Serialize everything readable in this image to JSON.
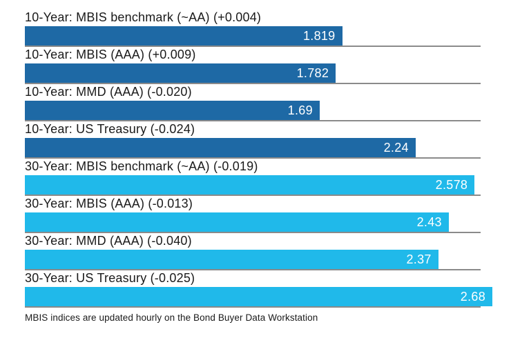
{
  "footer": {
    "note": "MBIS indices are updated hourly on the Bond Buyer Data Workstation"
  },
  "colors": {
    "bar_10_year": "#1e69a5",
    "bar_30_year": "#20b9ea",
    "row_baseline": "#8a8a8a",
    "bar_value_text": "#ffffff",
    "label_text": "#1a1a1a"
  },
  "chart_data": {
    "type": "bar",
    "orientation": "horizontal",
    "title": "",
    "xlabel": "",
    "ylabel": "",
    "xlim": [
      0,
      2.68
    ],
    "grid": "baseline-under-each-bar",
    "legend": "none",
    "categories": [
      "10-Year: MBIS benchmark (~AA) (+0.004)",
      "10-Year: MBIS (AAA) (+0.009)",
      "10-Year: MMD (AAA) (-0.020)",
      "10-Year: US Treasury (-0.024)",
      "30-Year: MBIS benchmark (~AA) (-0.019)",
      "30-Year: MBIS (AAA) (-0.013)",
      "30-Year: MMD (AAA) (-0.040)",
      "30-Year: US Treasury (-0.025)"
    ],
    "values": [
      1.819,
      1.782,
      1.69,
      2.24,
      2.578,
      2.43,
      2.37,
      2.68
    ],
    "value_labels": [
      "1.819",
      "1.782",
      "1.69",
      "2.24",
      "2.578",
      "2.43",
      "2.37",
      "2.68"
    ],
    "series_groups": [
      "10-Year",
      "10-Year",
      "10-Year",
      "10-Year",
      "30-Year",
      "30-Year",
      "30-Year",
      "30-Year"
    ],
    "bar_colors": {
      "10-Year": "#1e69a5",
      "30-Year": "#20b9ea"
    },
    "footnote": "MBIS indices are updated hourly on the Bond Buyer Data Workstation"
  }
}
